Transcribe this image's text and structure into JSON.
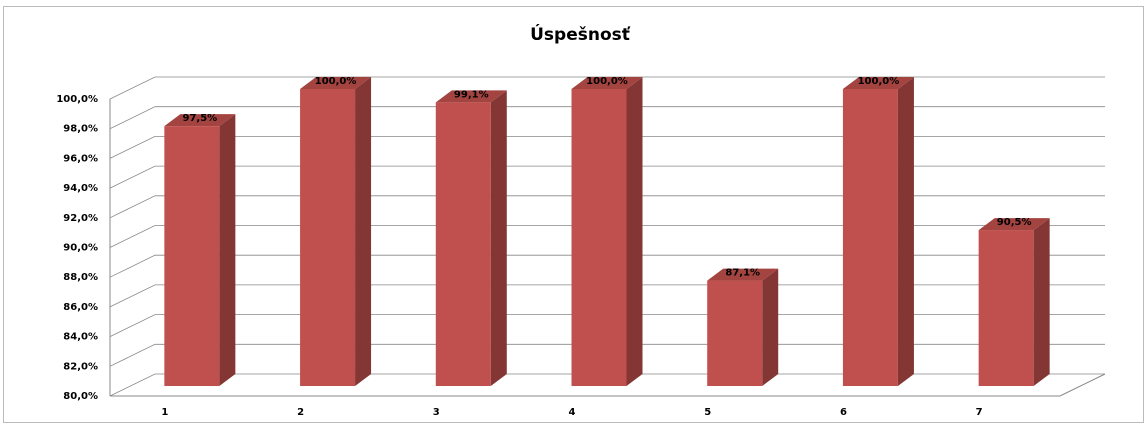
{
  "chart_data": {
    "type": "bar",
    "title": "Úspešnosť",
    "categories": [
      "1",
      "2",
      "3",
      "4",
      "5",
      "6",
      "7"
    ],
    "values": [
      97.5,
      100,
      99.1,
      100,
      87.1,
      100,
      90.5
    ],
    "value_labels": [
      "97,5%",
      "100,0%",
      "99,1%",
      "100,0%",
      "87,1%",
      "100,0%",
      "90,5%"
    ],
    "color": "#c0504d",
    "ylim": [
      80,
      100
    ],
    "yticks": [
      {
        "value": 80,
        "label": "80,0%"
      },
      {
        "value": 82,
        "label": "82,0%"
      },
      {
        "value": 84,
        "label": "84,0%"
      },
      {
        "value": 86,
        "label": "86,0%"
      },
      {
        "value": 88,
        "label": "88,0%"
      },
      {
        "value": 90,
        "label": "90,0%"
      },
      {
        "value": 92,
        "label": "92,0%"
      },
      {
        "value": 94,
        "label": "94,0%"
      },
      {
        "value": 96,
        "label": "96,0%"
      },
      {
        "value": 98,
        "label": "98,0%"
      },
      {
        "value": 100,
        "label": "100,0%"
      }
    ],
    "grid": true
  }
}
